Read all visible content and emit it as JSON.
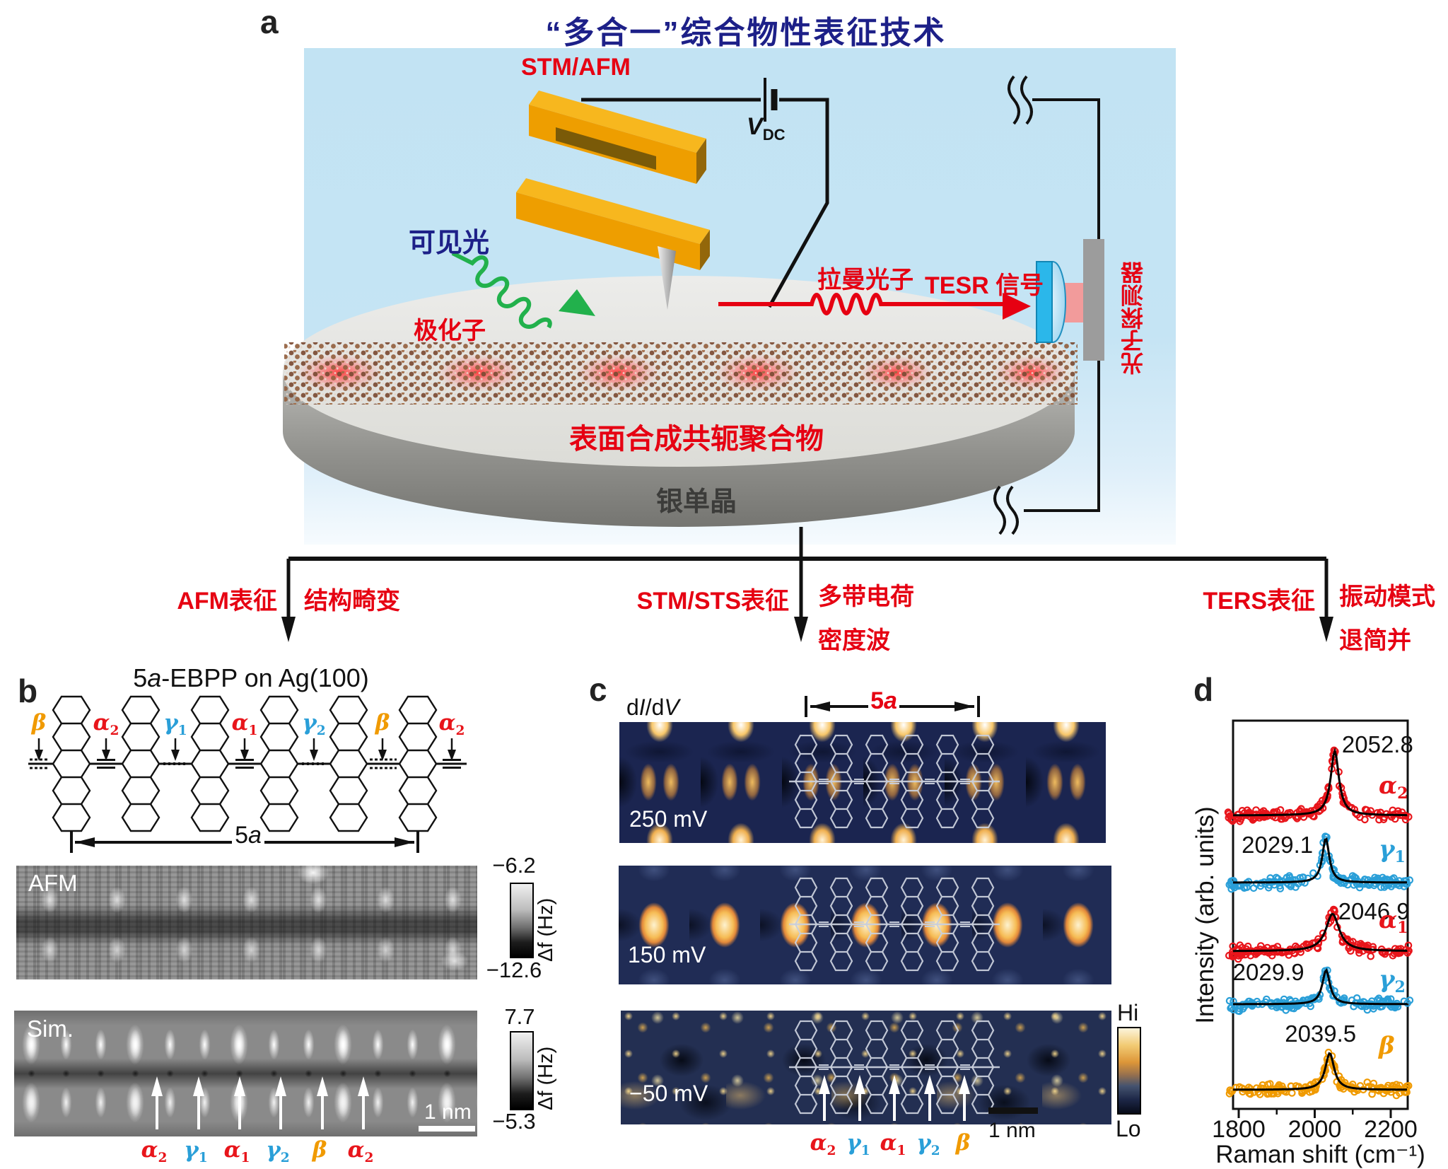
{
  "colors": {
    "accent_red": "#e60012",
    "alpha_red": "#e8151b",
    "gamma_blue": "#2a9fd8",
    "beta_orange": "#f09a00",
    "title_navy": "#1d2088",
    "panel_blue": "#c2e3f3",
    "map_navy": "#1b2550"
  },
  "panel_a": {
    "label": "a",
    "title": "“多合一”综合物性表征技术",
    "stm_afm": "STM/AFM",
    "vdc_base": "V",
    "vdc_sub": "DC",
    "visible_light": "可见光",
    "polaron": "极化子",
    "raman_photon": "拉曼光子",
    "tesr_signal": "TESR 信号",
    "photon_detector": "光子探测器",
    "polymer": "表面合成共轭聚合物",
    "substrate": "银单晶"
  },
  "branches": [
    {
      "method": "AFM表征",
      "results": [
        "结构畸变"
      ]
    },
    {
      "method": "STM/STS表征",
      "results": [
        "多带电荷",
        "密度波"
      ]
    },
    {
      "method": "TERS表征",
      "results": [
        "振动模式",
        "退简并"
      ]
    }
  ],
  "panel_b": {
    "label": "b",
    "title_pre": "5",
    "title_italic": "a",
    "title_post": "-EBPP on Ag(100)",
    "sites": [
      {
        "base": "β",
        "sub": "",
        "type": "beta"
      },
      {
        "base": "α",
        "sub": "2",
        "type": "alpha"
      },
      {
        "base": "γ",
        "sub": "1",
        "type": "gamma"
      },
      {
        "base": "α",
        "sub": "1",
        "type": "alpha"
      },
      {
        "base": "γ",
        "sub": "2",
        "type": "gamma"
      },
      {
        "base": "β",
        "sub": "",
        "type": "beta"
      },
      {
        "base": "α",
        "sub": "2",
        "type": "alpha"
      }
    ],
    "span_pre": "5",
    "span_italic": "a",
    "afm": {
      "label": "AFM",
      "cbar_top": "−6.2",
      "cbar_bottom": "−12.6",
      "cbar_unit": "Δf (Hz)"
    },
    "sim": {
      "label": "Sim.",
      "cbar_top": "7.7",
      "cbar_bottom": "−5.3",
      "cbar_unit": "Δf (Hz)",
      "scalebar": "1 nm"
    },
    "sim_sites": [
      {
        "base": "α",
        "sub": "2",
        "type": "alpha"
      },
      {
        "base": "γ",
        "sub": "1",
        "type": "gamma"
      },
      {
        "base": "α",
        "sub": "1",
        "type": "alpha"
      },
      {
        "base": "γ",
        "sub": "2",
        "type": "gamma"
      },
      {
        "base": "β",
        "sub": "",
        "type": "beta"
      },
      {
        "base": "α",
        "sub": "2",
        "type": "alpha"
      }
    ]
  },
  "panel_c": {
    "label": "c",
    "didv_pre": "d",
    "didv_i1": "I",
    "didv_mid": "/d",
    "didv_i2": "V",
    "span_pre": "5",
    "span_italic": "a",
    "maps": [
      {
        "bias": "250 mV"
      },
      {
        "bias": "150 mV"
      },
      {
        "bias": "−50 mV"
      }
    ],
    "cbar_top": "Hi",
    "cbar_bottom": "Lo",
    "scalebar": "1 nm",
    "sites": [
      {
        "base": "α",
        "sub": "2",
        "type": "alpha"
      },
      {
        "base": "γ",
        "sub": "1",
        "type": "gamma"
      },
      {
        "base": "α",
        "sub": "1",
        "type": "alpha"
      },
      {
        "base": "γ",
        "sub": "2",
        "type": "gamma"
      },
      {
        "base": "β",
        "sub": "",
        "type": "beta"
      }
    ]
  },
  "panel_d": {
    "label": "d",
    "chart_data": {
      "type": "scatter",
      "description": "Five vertically offset TERS Raman spectra (open-circle data + black Lorentzian fits), one per bond site",
      "xlabel": "Raman shift (cm⁻¹)",
      "ylabel": "Intensity (arb. units)",
      "xlim": [
        1780,
        2250
      ],
      "xticks": [
        1800,
        2000,
        2200
      ],
      "xticks_minor": [
        1900,
        2100
      ],
      "grid": false,
      "fit_color": "#000000",
      "series": [
        {
          "name": "alpha2",
          "base": "α",
          "sub": "2",
          "type": "alpha",
          "color": "#e8151b",
          "peak_cm1": 2052.8,
          "peak_label": "2052.8",
          "fwhm_cm1": 26,
          "rel_height": 1.0
        },
        {
          "name": "gamma1",
          "base": "γ",
          "sub": "1",
          "type": "gamma",
          "color": "#2a9fd8",
          "peak_cm1": 2029.1,
          "peak_label": "2029.1",
          "fwhm_cm1": 22,
          "rel_height": 0.69
        },
        {
          "name": "alpha1",
          "base": "α",
          "sub": "1",
          "type": "alpha",
          "color": "#e8151b",
          "peak_cm1": 2046.9,
          "peak_label": "2046.9",
          "fwhm_cm1": 42,
          "rel_height": 0.58
        },
        {
          "name": "gamma2",
          "base": "γ",
          "sub": "2",
          "type": "gamma",
          "color": "#2a9fd8",
          "peak_cm1": 2029.9,
          "peak_label": "2029.9",
          "fwhm_cm1": 24,
          "rel_height": 0.53
        },
        {
          "name": "beta",
          "base": "β",
          "sub": "",
          "type": "beta",
          "color": "#f09a00",
          "peak_cm1": 2039.5,
          "peak_label": "2039.5",
          "fwhm_cm1": 28,
          "rel_height": 0.57
        }
      ]
    }
  }
}
